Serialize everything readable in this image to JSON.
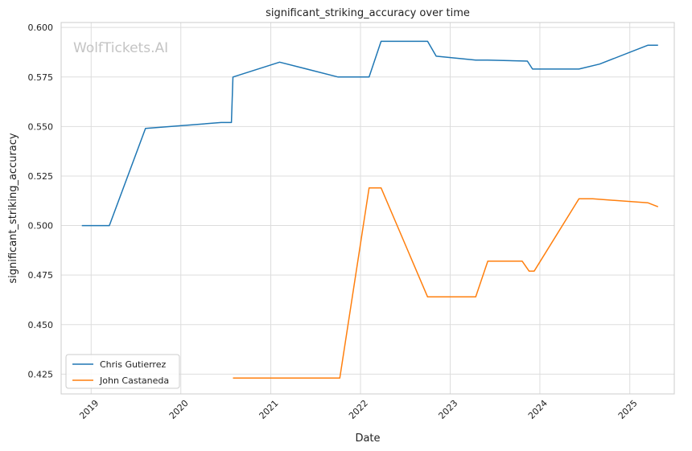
{
  "chart_data": {
    "type": "line",
    "title": "significant_striking_accuracy over time",
    "xlabel": "Date",
    "ylabel": "significant_striking_accuracy",
    "watermark": "WolfTickets.AI",
    "xlim": [
      "2018-09-01",
      "2025-07-01"
    ],
    "ylim": [
      0.415,
      0.6025
    ],
    "x_ticks": [
      "2019-01-01",
      "2020-01-01",
      "2021-01-01",
      "2022-01-01",
      "2023-01-01",
      "2024-01-01",
      "2025-01-01"
    ],
    "x_tick_labels": [
      "2019",
      "2020",
      "2021",
      "2022",
      "2023",
      "2024",
      "2025"
    ],
    "y_ticks": [
      0.425,
      0.45,
      0.475,
      0.5,
      0.525,
      0.55,
      0.575,
      0.6
    ],
    "y_tick_labels": [
      "0.425",
      "0.450",
      "0.475",
      "0.500",
      "0.525",
      "0.550",
      "0.575",
      "0.600"
    ],
    "grid": true,
    "legend_position": "lower-left",
    "series": [
      {
        "name": "Chris Gutierrez",
        "color": "#1f77b4",
        "points": [
          [
            "2018-11-24",
            0.5
          ],
          [
            "2019-03-16",
            0.5
          ],
          [
            "2019-08-10",
            0.549
          ],
          [
            "2020-06-13",
            0.552
          ],
          [
            "2020-07-25",
            0.552
          ],
          [
            "2020-07-31",
            0.575
          ],
          [
            "2021-02-06",
            0.5825
          ],
          [
            "2021-10-02",
            0.575
          ],
          [
            "2022-02-05",
            0.575
          ],
          [
            "2022-03-26",
            0.593
          ],
          [
            "2022-10-01",
            0.593
          ],
          [
            "2022-11-05",
            0.5855
          ],
          [
            "2023-04-15",
            0.5835
          ],
          [
            "2023-06-03",
            0.5835
          ],
          [
            "2023-11-11",
            0.583
          ],
          [
            "2023-12-02",
            0.579
          ],
          [
            "2024-06-08",
            0.579
          ],
          [
            "2024-08-31",
            0.5815
          ],
          [
            "2025-03-15",
            0.591
          ],
          [
            "2025-04-26",
            0.591
          ]
        ]
      },
      {
        "name": "John Castaneda",
        "color": "#ff7f0e",
        "points": [
          [
            "2020-07-31",
            0.423
          ],
          [
            "2021-10-09",
            0.423
          ],
          [
            "2022-02-05",
            0.519
          ],
          [
            "2022-03-26",
            0.519
          ],
          [
            "2022-10-01",
            0.464
          ],
          [
            "2023-04-15",
            0.464
          ],
          [
            "2023-06-03",
            0.482
          ],
          [
            "2023-10-21",
            0.482
          ],
          [
            "2023-11-18",
            0.477
          ],
          [
            "2023-12-09",
            0.477
          ],
          [
            "2024-06-08",
            0.5135
          ],
          [
            "2024-08-03",
            0.5135
          ],
          [
            "2025-03-15",
            0.5115
          ],
          [
            "2025-04-26",
            0.5095
          ]
        ]
      }
    ]
  }
}
